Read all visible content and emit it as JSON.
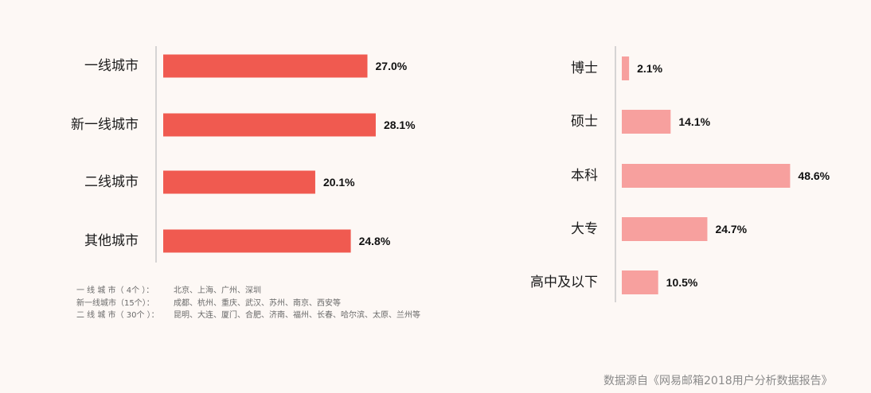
{
  "chart_data": [
    {
      "type": "bar",
      "orientation": "horizontal",
      "categories": [
        "一线城市",
        "新一线城市",
        "二线城市",
        "其他城市"
      ],
      "values": [
        27.0,
        28.1,
        20.1,
        24.8
      ],
      "value_labels": [
        "27.0%",
        "28.1%",
        "20.1%",
        "24.8%"
      ],
      "unit": "%",
      "color": "#f05a50",
      "grid": false,
      "legend": "none"
    },
    {
      "type": "bar",
      "orientation": "horizontal",
      "categories": [
        "博士",
        "硕士",
        "本科",
        "大专",
        "高中及以下"
      ],
      "values": [
        2.1,
        14.1,
        48.6,
        24.7,
        10.5
      ],
      "value_labels": [
        "2.1%",
        "14.1%",
        "48.6%",
        "24.7%",
        "10.5%"
      ],
      "unit": "%",
      "color": "#f7a09e",
      "grid": false,
      "legend": "none"
    }
  ],
  "notes": [
    {
      "key": "一 线 城 市（ 4个 ）：",
      "value": "北京、上海、广州、深圳"
    },
    {
      "key": "新一线城市（15个）：",
      "value": "成都、杭州、重庆、武汉、苏州、南京、西安等"
    },
    {
      "key": "二 线 城 市（ 30个 ）：",
      "value": "昆明、大连、厦门、合肥、济南、福州、长春、哈尔滨、太原、兰州等"
    }
  ],
  "source": "数据源自《网易邮箱2018用户分析数据报告》"
}
